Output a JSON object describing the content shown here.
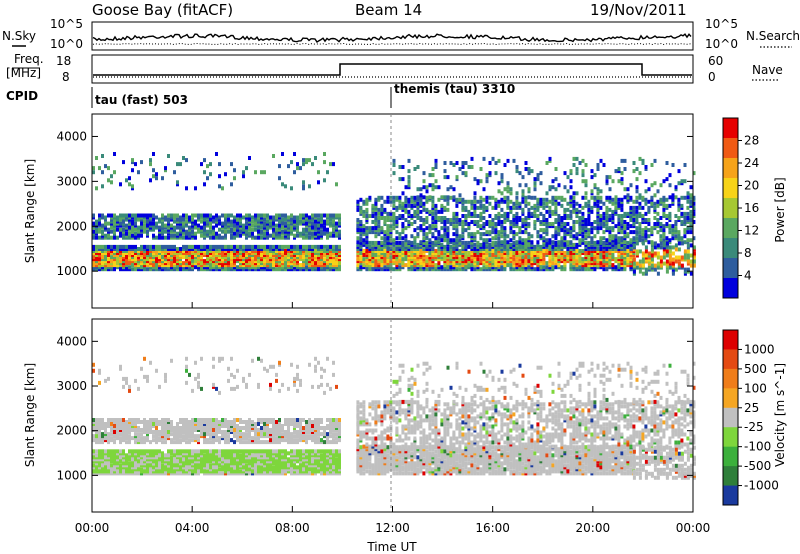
{
  "header": {
    "station": "Goose Bay (fitACF)",
    "beam": "Beam 14",
    "date": "19/Nov/2011"
  },
  "panels": {
    "sky_noise": {
      "left_label": "N.Sky",
      "right_label": "N.Search",
      "left_ticks": [
        "10^5",
        "10^0"
      ],
      "right_ticks": [
        "10^5",
        "10^0"
      ]
    },
    "frequency": {
      "left_label_1": "Freq.",
      "left_label_2": "[MHz]",
      "left_ticks": [
        "18",
        "8"
      ],
      "right_label": "Nave",
      "right_ticks": [
        "60",
        "0"
      ]
    },
    "cpid": {
      "label": "CPID",
      "segments": [
        "tau (fast) 503",
        "themis (tau) 3310"
      ]
    }
  },
  "chart_data": [
    {
      "type": "heatmap",
      "name": "Power",
      "ylabel": "Slant Range [km]",
      "ylim": [
        180,
        4500
      ],
      "yticks": [
        "1000",
        "2000",
        "3000",
        "4000"
      ],
      "colorbar_label": "Power [dB]",
      "colorbar_ticks": [
        "28",
        "24",
        "20",
        "16",
        "12",
        "8",
        "4"
      ],
      "colors": [
        "#0000dd",
        "#2e5d9e",
        "#3a8a7a",
        "#5aa860",
        "#a6c832",
        "#f7d318",
        "#f6a319",
        "#f05a14",
        "#e60000"
      ],
      "grid": false
    },
    {
      "type": "heatmap",
      "name": "Velocity",
      "ylabel": "Slant Range [km]",
      "xlabel": "Time UT",
      "ylim": [
        180,
        4500
      ],
      "yticks": [
        "1000",
        "2000",
        "3000",
        "4000"
      ],
      "xticks": [
        "00:00",
        "04:00",
        "08:00",
        "12:00",
        "16:00",
        "20:00",
        "00:00"
      ],
      "colorbar_label": "Velocity [m s^-1]",
      "colorbar_ticks": [
        "1000",
        "500",
        "100",
        "25",
        "-25",
        "-100",
        "-500",
        "-1000"
      ],
      "colors": [
        "#1a3a9e",
        "#2f7f3a",
        "#3cb03c",
        "#7ed63c",
        "#c0c0c0",
        "#f5a623",
        "#ef7d1a",
        "#e44a12",
        "#dd0000"
      ],
      "grid": false
    }
  ]
}
